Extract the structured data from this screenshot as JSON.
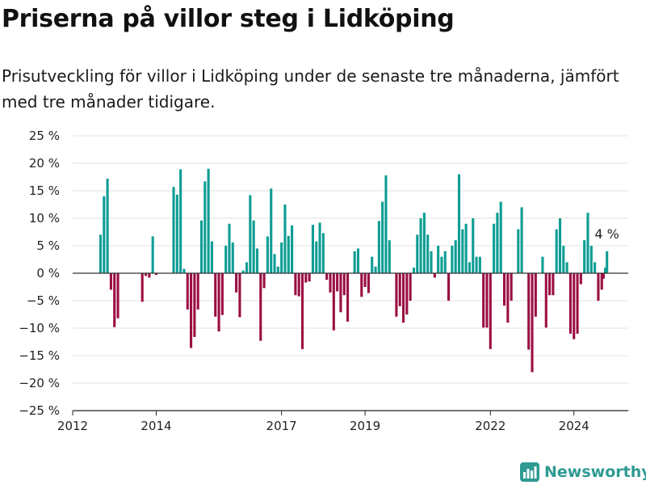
{
  "header": {
    "title": "Priserna på villor steg i Lidköping",
    "subtitle": "Prisutveckling för villor i Lidköping under de senaste tre månaderna, jämfört med tre månader tidigare."
  },
  "brand": {
    "name": "Newsworthy",
    "icon": "newsworthy-logo-icon"
  },
  "colors": {
    "positive": "#0d9d94",
    "negative": "#9b0e42",
    "grid": "#e2e2e2",
    "zero": "#333333"
  },
  "chart_data": {
    "type": "bar",
    "title": "Priserna på villor steg i Lidköping",
    "ylim": [
      -25,
      25
    ],
    "yticks": [
      -25,
      -20,
      -15,
      -10,
      -5,
      0,
      5,
      10,
      15,
      20,
      25
    ],
    "ytick_labels": [
      "−25 %",
      "−20 %",
      "−15 %",
      "−10 %",
      "−5 %",
      "0 %",
      "5 %",
      "10 %",
      "15 %",
      "20 %",
      "25 %"
    ],
    "xlim": [
      2012.0,
      2025.3
    ],
    "xticks": [
      2012,
      2014,
      2017,
      2019,
      2022,
      2024
    ],
    "xtick_labels": [
      "2012",
      "2014",
      "2017",
      "2019",
      "2022",
      "2024"
    ],
    "grid": true,
    "annotation": {
      "text": "4 %",
      "date": "2024-10",
      "value": 4
    },
    "series": [
      {
        "date": "2012-09",
        "value": 7
      },
      {
        "date": "2012-10",
        "value": 14
      },
      {
        "date": "2012-11",
        "value": 17.2
      },
      {
        "date": "2012-12",
        "value": -3
      },
      {
        "date": "2013-01",
        "value": -9.8
      },
      {
        "date": "2013-02",
        "value": -8.2
      },
      {
        "date": "2013-09",
        "value": -5.2
      },
      {
        "date": "2013-10",
        "value": -0.5
      },
      {
        "date": "2013-11",
        "value": -0.8
      },
      {
        "date": "2013-12",
        "value": 6.7
      },
      {
        "date": "2014-01",
        "value": -0.3
      },
      {
        "date": "2014-06",
        "value": 15.7
      },
      {
        "date": "2014-07",
        "value": 14.3
      },
      {
        "date": "2014-08",
        "value": 18.9
      },
      {
        "date": "2014-09",
        "value": 0.8
      },
      {
        "date": "2014-10",
        "value": -6.6
      },
      {
        "date": "2014-11",
        "value": -13.6
      },
      {
        "date": "2014-12",
        "value": -11.6
      },
      {
        "date": "2015-01",
        "value": -6.6
      },
      {
        "date": "2015-02",
        "value": 9.6
      },
      {
        "date": "2015-03",
        "value": 16.7
      },
      {
        "date": "2015-04",
        "value": 19
      },
      {
        "date": "2015-05",
        "value": 5.8
      },
      {
        "date": "2015-06",
        "value": -7.9
      },
      {
        "date": "2015-07",
        "value": -10.6
      },
      {
        "date": "2015-08",
        "value": -7.6
      },
      {
        "date": "2015-09",
        "value": 5
      },
      {
        "date": "2015-10",
        "value": 9
      },
      {
        "date": "2015-11",
        "value": 5.6
      },
      {
        "date": "2015-12",
        "value": -3.5
      },
      {
        "date": "2016-01",
        "value": -8
      },
      {
        "date": "2016-02",
        "value": 0.5
      },
      {
        "date": "2016-03",
        "value": 2
      },
      {
        "date": "2016-04",
        "value": 14.2
      },
      {
        "date": "2016-05",
        "value": 9.6
      },
      {
        "date": "2016-06",
        "value": 4.5
      },
      {
        "date": "2016-07",
        "value": -12.3
      },
      {
        "date": "2016-08",
        "value": -2.7
      },
      {
        "date": "2016-09",
        "value": 6.7
      },
      {
        "date": "2016-10",
        "value": 15.4
      },
      {
        "date": "2016-11",
        "value": 3.5
      },
      {
        "date": "2016-12",
        "value": 1.2
      },
      {
        "date": "2017-01",
        "value": 5.6
      },
      {
        "date": "2017-02",
        "value": 12.5
      },
      {
        "date": "2017-03",
        "value": 6.8
      },
      {
        "date": "2017-04",
        "value": 8.7
      },
      {
        "date": "2017-05",
        "value": -4
      },
      {
        "date": "2017-06",
        "value": -4.2
      },
      {
        "date": "2017-07",
        "value": -13.8
      },
      {
        "date": "2017-08",
        "value": -1.7
      },
      {
        "date": "2017-09",
        "value": -1.5
      },
      {
        "date": "2017-10",
        "value": 8.8
      },
      {
        "date": "2017-11",
        "value": 5.8
      },
      {
        "date": "2017-12",
        "value": 9.2
      },
      {
        "date": "2018-01",
        "value": 7.3
      },
      {
        "date": "2018-02",
        "value": -1.2
      },
      {
        "date": "2018-03",
        "value": -3.5
      },
      {
        "date": "2018-04",
        "value": -10.4
      },
      {
        "date": "2018-05",
        "value": -3.3
      },
      {
        "date": "2018-06",
        "value": -7.1
      },
      {
        "date": "2018-07",
        "value": -4
      },
      {
        "date": "2018-08",
        "value": -8.8
      },
      {
        "date": "2018-10",
        "value": 4
      },
      {
        "date": "2018-11",
        "value": 4.5
      },
      {
        "date": "2018-12",
        "value": -4.3
      },
      {
        "date": "2019-01",
        "value": -2.5
      },
      {
        "date": "2019-02",
        "value": -3.6
      },
      {
        "date": "2019-03",
        "value": 3
      },
      {
        "date": "2019-04",
        "value": 1.2
      },
      {
        "date": "2019-05",
        "value": 9.5
      },
      {
        "date": "2019-06",
        "value": 13
      },
      {
        "date": "2019-07",
        "value": 17.8
      },
      {
        "date": "2019-08",
        "value": 6
      },
      {
        "date": "2019-10",
        "value": -7.9
      },
      {
        "date": "2019-11",
        "value": -6
      },
      {
        "date": "2019-12",
        "value": -9
      },
      {
        "date": "2020-01",
        "value": -7.5
      },
      {
        "date": "2020-02",
        "value": -5
      },
      {
        "date": "2020-03",
        "value": 1
      },
      {
        "date": "2020-04",
        "value": 7
      },
      {
        "date": "2020-05",
        "value": 10
      },
      {
        "date": "2020-06",
        "value": 11
      },
      {
        "date": "2020-07",
        "value": 7
      },
      {
        "date": "2020-08",
        "value": 4
      },
      {
        "date": "2020-09",
        "value": -0.8
      },
      {
        "date": "2020-10",
        "value": 5
      },
      {
        "date": "2020-11",
        "value": 3
      },
      {
        "date": "2020-12",
        "value": 4
      },
      {
        "date": "2021-01",
        "value": -5
      },
      {
        "date": "2021-02",
        "value": 5
      },
      {
        "date": "2021-03",
        "value": 6
      },
      {
        "date": "2021-04",
        "value": 18
      },
      {
        "date": "2021-05",
        "value": 8
      },
      {
        "date": "2021-06",
        "value": 9
      },
      {
        "date": "2021-07",
        "value": 2
      },
      {
        "date": "2021-08",
        "value": 10
      },
      {
        "date": "2021-09",
        "value": 3
      },
      {
        "date": "2021-10",
        "value": 3
      },
      {
        "date": "2021-11",
        "value": -9.9
      },
      {
        "date": "2021-12",
        "value": -9.9
      },
      {
        "date": "2022-01",
        "value": -13.8
      },
      {
        "date": "2022-02",
        "value": 9
      },
      {
        "date": "2022-03",
        "value": 11
      },
      {
        "date": "2022-04",
        "value": 13
      },
      {
        "date": "2022-05",
        "value": -5.9
      },
      {
        "date": "2022-06",
        "value": -9
      },
      {
        "date": "2022-07",
        "value": -5
      },
      {
        "date": "2022-09",
        "value": 8
      },
      {
        "date": "2022-10",
        "value": 12
      },
      {
        "date": "2022-12",
        "value": -13.9
      },
      {
        "date": "2023-01",
        "value": -18
      },
      {
        "date": "2023-02",
        "value": -7.9
      },
      {
        "date": "2023-04",
        "value": 3
      },
      {
        "date": "2023-05",
        "value": -9.9
      },
      {
        "date": "2023-06",
        "value": -4
      },
      {
        "date": "2023-07",
        "value": -4
      },
      {
        "date": "2023-08",
        "value": 8
      },
      {
        "date": "2023-09",
        "value": 10
      },
      {
        "date": "2023-10",
        "value": 5
      },
      {
        "date": "2023-11",
        "value": 2
      },
      {
        "date": "2023-12",
        "value": -11
      },
      {
        "date": "2024-01",
        "value": -12
      },
      {
        "date": "2024-02",
        "value": -11
      },
      {
        "date": "2024-03",
        "value": -2
      },
      {
        "date": "2024-04",
        "value": 6
      },
      {
        "date": "2024-05",
        "value": 11
      },
      {
        "date": "2024-06",
        "value": 5
      },
      {
        "date": "2024-07",
        "value": 2
      },
      {
        "date": "2024-08",
        "value": -5
      },
      {
        "date": "2024-09",
        "value": -3
      },
      {
        "date": "2024-09-16",
        "value": -1
      },
      {
        "date": "2024-10",
        "value": 1
      },
      {
        "date": "2024-10-16",
        "value": 4
      }
    ]
  }
}
